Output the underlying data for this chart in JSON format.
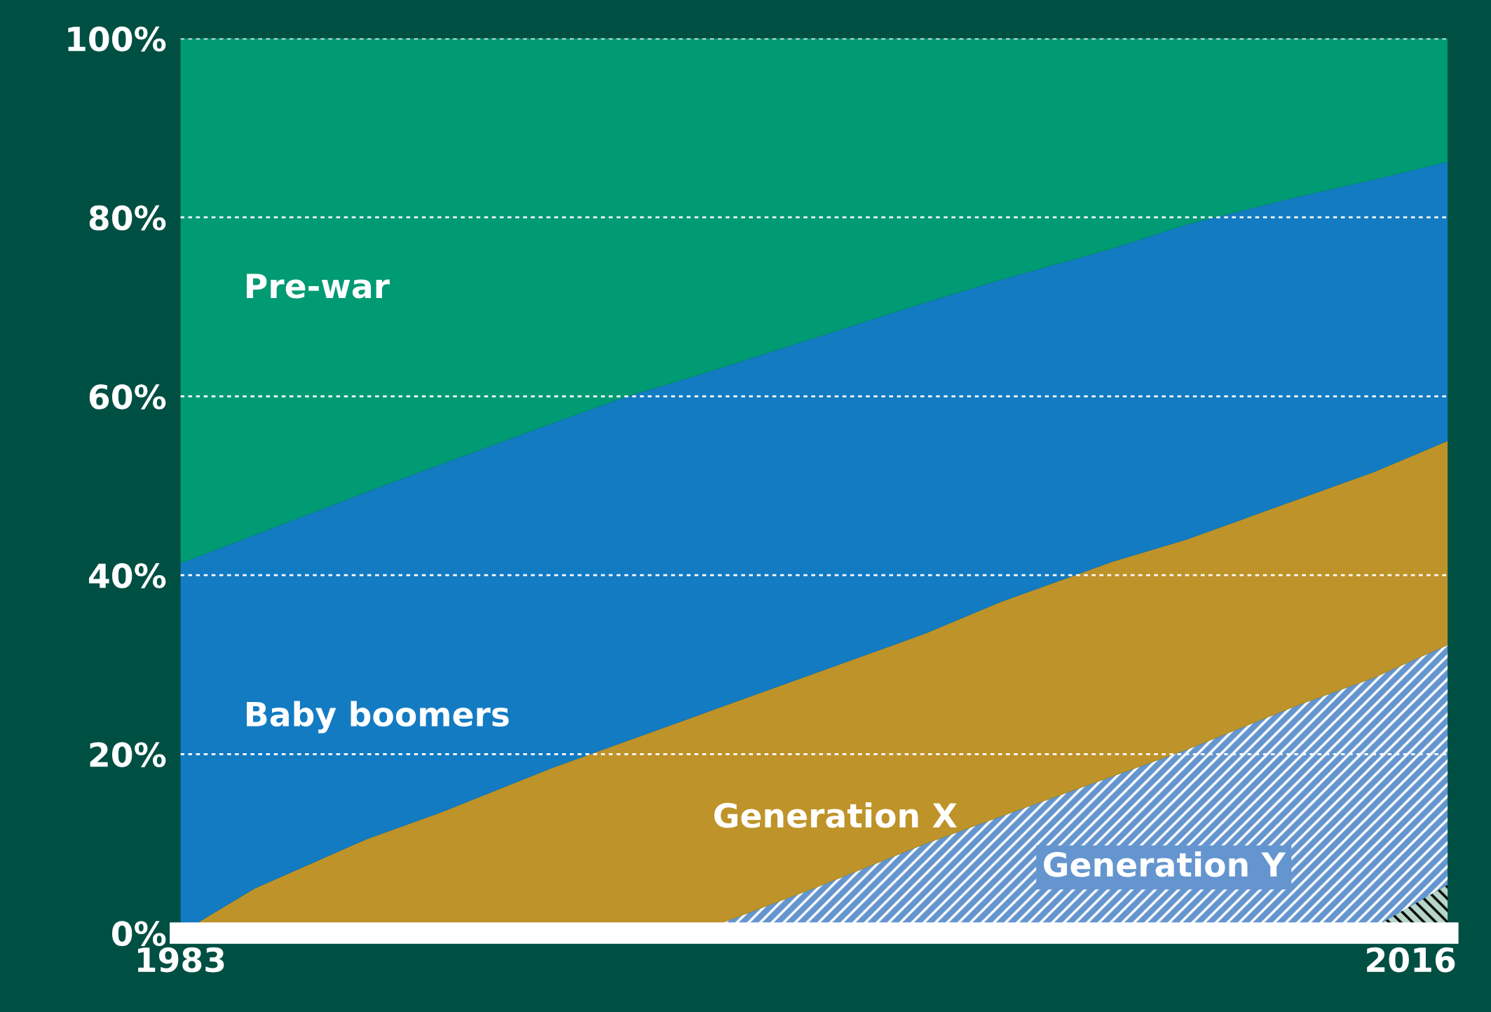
{
  "chart_data": {
    "type": "area",
    "stacked": true,
    "x": [
      1983,
      1985,
      1988,
      1990,
      1993,
      1995,
      1997,
      2000,
      2003,
      2005,
      2008,
      2010,
      2013,
      2015,
      2017
    ],
    "series": [
      {
        "color": "#b5d6c8",
        "values": [
          0,
          0,
          0,
          0,
          0,
          0,
          0,
          0,
          0,
          0,
          0,
          0,
          0,
          0.6,
          5.4
        ]
      },
      {
        "name": "Generation Y",
        "color": "#6495cf",
        "values": [
          0,
          0,
          0,
          0,
          0,
          0,
          0.3,
          5,
          10,
          13,
          17.5,
          20.5,
          25.5,
          27.9,
          26.8
        ]
      },
      {
        "name": "Generation X",
        "color": "#be9329",
        "values": [
          0,
          5,
          10.5,
          13.5,
          18.5,
          21.5,
          24.2,
          24,
          23.5,
          24,
          24,
          23.5,
          23,
          23,
          22.8
        ]
      },
      {
        "name": "Baby boomers",
        "color": "#137bc2",
        "values": [
          41.3,
          39.5,
          38.8,
          38.9,
          38.5,
          38.5,
          38,
          37.5,
          37,
          36,
          35,
          35.2,
          33.8,
          32.7,
          31.2
        ]
      },
      {
        "name": "Pre-war",
        "color": "#009a73",
        "values": [
          58.7,
          55.5,
          50.7,
          47.6,
          43,
          40,
          37.5,
          33.5,
          29.5,
          27,
          23.5,
          20.8,
          17.7,
          15.8,
          13.8
        ]
      }
    ],
    "xlim": [
      1983,
      2017
    ],
    "xticks": [
      1983,
      2016
    ],
    "ylim": [
      0,
      100
    ],
    "yticks": [
      {
        "value": 0,
        "label": "0%"
      },
      {
        "value": 20,
        "label": "20%"
      },
      {
        "value": 40,
        "label": "40%"
      },
      {
        "value": 60,
        "label": "60%"
      },
      {
        "value": 80,
        "label": "80%"
      },
      {
        "value": 100,
        "label": "100%"
      }
    ],
    "grid": "y",
    "legend": false
  }
}
